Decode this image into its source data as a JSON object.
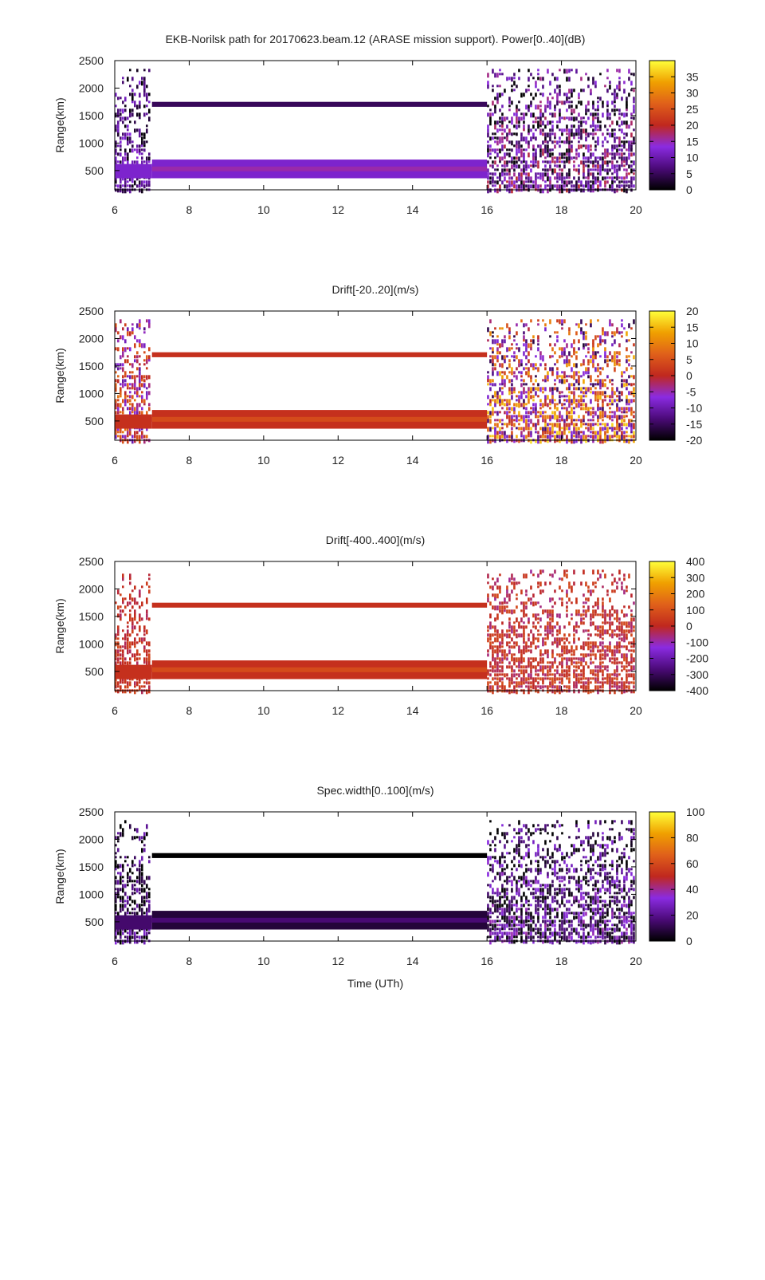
{
  "palette": {
    "stops": [
      "#000000",
      "#4b0a78",
      "#8a2be2",
      "#c0281e",
      "#e0601a",
      "#f0a000",
      "#ffff3a"
    ],
    "band_color": "#ffffff"
  },
  "chart_data": [
    {
      "type": "heatmap",
      "title": "EKB-Norilsk path for 20170623.beam.12 (ARASE mission support). Power[0..40](dB)",
      "ylabel": "Range(km)",
      "xlabel": "",
      "xlim": [
        6,
        20
      ],
      "ylim": [
        150,
        2500
      ],
      "xticks": [
        6,
        8,
        10,
        12,
        14,
        16,
        18,
        20
      ],
      "yticks": [
        500,
        1000,
        1500,
        2000,
        2500
      ],
      "colorbar": {
        "min": 0,
        "max": 40,
        "ticks": [
          0,
          5,
          10,
          15,
          20,
          25,
          30,
          35
        ]
      },
      "bands": [
        {
          "t0": 7.0,
          "t1": 16.0,
          "r0": 1660,
          "r1": 1750,
          "value": 5
        },
        {
          "t0": 7.0,
          "t1": 16.0,
          "r0": 360,
          "r1": 700,
          "value": 12
        },
        {
          "t0": 6.0,
          "t1": 7.0,
          "r0": 360,
          "r1": 620,
          "value": 12
        }
      ],
      "scatter": [
        {
          "t0": 6.0,
          "t1": 7.0,
          "r0": 150,
          "r1": 2350,
          "value": 8,
          "spread": 7
        },
        {
          "t0": 16.0,
          "t1": 20.0,
          "r0": 150,
          "r1": 2350,
          "value": 10,
          "spread": 10
        }
      ]
    },
    {
      "type": "heatmap",
      "title": "Drift[-20..20](m/s)",
      "ylabel": "Range(km)",
      "xlabel": "",
      "xlim": [
        6,
        20
      ],
      "ylim": [
        150,
        2500
      ],
      "xticks": [
        6,
        8,
        10,
        12,
        14,
        16,
        18,
        20
      ],
      "yticks": [
        500,
        1000,
        1500,
        2000,
        2500
      ],
      "colorbar": {
        "min": -20,
        "max": 20,
        "ticks": [
          -20,
          -15,
          -10,
          -5,
          0,
          5,
          10,
          15,
          20
        ]
      },
      "bands": [
        {
          "t0": 7.0,
          "t1": 16.0,
          "r0": 1660,
          "r1": 1750,
          "value": 1
        },
        {
          "t0": 7.0,
          "t1": 16.0,
          "r0": 360,
          "r1": 700,
          "value": 1
        },
        {
          "t0": 6.0,
          "t1": 7.0,
          "r0": 360,
          "r1": 620,
          "value": 1
        }
      ],
      "scatter": [
        {
          "t0": 6.0,
          "t1": 7.0,
          "r0": 150,
          "r1": 2350,
          "value": 0,
          "spread": 10
        },
        {
          "t0": 16.0,
          "t1": 20.0,
          "r0": 150,
          "r1": 2350,
          "value": 2,
          "spread": 16
        }
      ]
    },
    {
      "type": "heatmap",
      "title": "Drift[-400..400](m/s)",
      "ylabel": "Range(km)",
      "xlabel": "",
      "xlim": [
        6,
        20
      ],
      "ylim": [
        150,
        2500
      ],
      "xticks": [
        6,
        8,
        10,
        12,
        14,
        16,
        18,
        20
      ],
      "yticks": [
        500,
        1000,
        1500,
        2000,
        2500
      ],
      "colorbar": {
        "min": -400,
        "max": 400,
        "ticks": [
          -400,
          -300,
          -200,
          -100,
          0,
          100,
          200,
          300,
          400
        ]
      },
      "bands": [
        {
          "t0": 7.0,
          "t1": 16.0,
          "r0": 1660,
          "r1": 1750,
          "value": 20
        },
        {
          "t0": 7.0,
          "t1": 16.0,
          "r0": 360,
          "r1": 700,
          "value": 20
        },
        {
          "t0": 6.0,
          "t1": 7.0,
          "r0": 360,
          "r1": 620,
          "value": 20
        }
      ],
      "scatter": [
        {
          "t0": 6.0,
          "t1": 7.0,
          "r0": 150,
          "r1": 2350,
          "value": 20,
          "spread": 60
        },
        {
          "t0": 16.0,
          "t1": 20.0,
          "r0": 150,
          "r1": 2350,
          "value": 20,
          "spread": 80
        }
      ]
    },
    {
      "type": "heatmap",
      "title": "Spec.width[0..100](m/s)",
      "ylabel": "Range(km)",
      "xlabel": "Time (UTh)",
      "xlim": [
        6,
        20
      ],
      "ylim": [
        150,
        2500
      ],
      "xticks": [
        6,
        8,
        10,
        12,
        14,
        16,
        18,
        20
      ],
      "yticks": [
        500,
        1000,
        1500,
        2000,
        2500
      ],
      "colorbar": {
        "min": 0,
        "max": 100,
        "ticks": [
          0,
          20,
          40,
          60,
          80,
          100
        ]
      },
      "bands": [
        {
          "t0": 7.0,
          "t1": 16.0,
          "r0": 1660,
          "r1": 1750,
          "value": 0
        },
        {
          "t0": 7.0,
          "t1": 16.0,
          "r0": 360,
          "r1": 700,
          "value": 8
        },
        {
          "t0": 6.0,
          "t1": 7.0,
          "r0": 360,
          "r1": 620,
          "value": 15
        }
      ],
      "scatter": [
        {
          "t0": 6.0,
          "t1": 7.0,
          "r0": 150,
          "r1": 2350,
          "value": 12,
          "spread": 20
        },
        {
          "t0": 16.0,
          "t1": 20.0,
          "r0": 150,
          "r1": 2350,
          "value": 18,
          "spread": 22
        }
      ]
    }
  ]
}
